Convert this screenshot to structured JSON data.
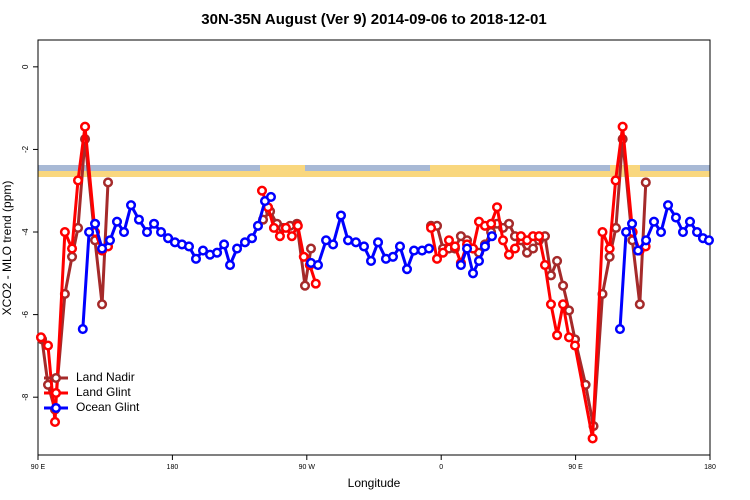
{
  "chart_data": {
    "type": "line",
    "title": "30N-35N August (Ver 9)   2014-09-06 to 2018-12-01",
    "x_label": "Longitude",
    "y_label": "XCO2 - MLO trend (ppm)",
    "xlim": [
      90,
      540
    ],
    "xticks": [
      {
        "value": 90,
        "label": "90 E"
      },
      180,
      {
        "value": 270,
        "label": "90 W"
      },
      {
        "value": 360,
        "label": "0"
      },
      {
        "value": 450,
        "label": "90 E"
      },
      {
        "value": 540,
        "label": "180"
      }
    ],
    "ylim": [
      -9.4,
      0.65
    ],
    "yticks": [
      0,
      -2,
      -4,
      -6,
      -8
    ],
    "legend": "bottomleft",
    "series": [
      {
        "name": "Land Nadir",
        "color": "#a52a2a",
        "x": [
          92.7,
          96.7,
          101.4,
          108,
          112.8,
          116.8,
          121.5,
          128.2,
          132.9,
          136.9,
          null,
          240.7,
          245.4,
          250,
          254,
          258.8,
          263.4,
          268.8,
          272.8,
          null,
          353.2,
          357.2,
          361.2,
          365.2,
          369.2,
          373.2,
          377.3,
          381.3,
          385.3,
          389.3,
          393.4,
          397.4,
          401.4,
          405.4,
          409.4,
          413.4,
          417.5,
          421.5,
          425.5,
          429.5,
          433.5,
          437.6,
          441.6,
          445.6,
          449.6,
          456.7,
          462,
          468,
          472.8,
          477,
          481.5,
          488,
          493,
          497
        ],
        "values": [
          -6.6,
          -7.7,
          -8.3,
          -5.5,
          -4.6,
          -3.9,
          -1.75,
          -4.2,
          -5.75,
          -2.8,
          null,
          -3.7,
          -3.5,
          -3.8,
          -3.9,
          -3.85,
          -3.8,
          -5.3,
          -4.4,
          null,
          -3.85,
          -3.85,
          -4.4,
          -4.4,
          -4.4,
          -4.1,
          -4.2,
          -4.4,
          -4.5,
          -4.3,
          -4.0,
          -3.8,
          -3.9,
          -3.8,
          -4.1,
          -4.2,
          -4.5,
          -4.4,
          -4.2,
          -4.1,
          -5.05,
          -4.7,
          -5.3,
          -5.9,
          -6.6,
          -7.7,
          -8.7,
          -5.5,
          -4.6,
          -3.9,
          -1.75,
          -4.2,
          -5.75,
          -2.8
        ]
      },
      {
        "name": "Land Glint",
        "color": "#ff0000",
        "x": [
          92,
          96.7,
          101.4,
          108,
          112.8,
          116.8,
          121.5,
          128.2,
          132.9,
          136.9,
          null,
          240,
          244,
          248,
          252,
          256,
          260,
          264,
          268,
          272,
          276,
          null,
          353.2,
          357.2,
          361.2,
          365.2,
          369.2,
          373.2,
          377.3,
          381.3,
          385.3,
          389.3,
          393.4,
          397.4,
          401.4,
          405.4,
          409.4,
          413.4,
          417.5,
          421.5,
          425.5,
          429.5,
          433.5,
          437.6,
          441.6,
          445.6,
          449.6,
          461.4,
          468,
          472.8,
          476.8,
          481.5,
          488.2,
          492.9,
          496.9
        ],
        "values": [
          -6.55,
          -6.75,
          -8.6,
          -4.0,
          -4.4,
          -2.75,
          -1.45,
          -4.0,
          -4.45,
          -4.35,
          null,
          -3.0,
          -3.4,
          -3.9,
          -4.1,
          -3.9,
          -4.1,
          -3.85,
          -4.6,
          -4.8,
          -5.25,
          null,
          -3.9,
          -4.65,
          -4.5,
          -4.2,
          -4.35,
          -4.75,
          -4.3,
          -4.4,
          -3.75,
          -3.85,
          -3.8,
          -3.4,
          -4.2,
          -4.55,
          -4.4,
          -4.1,
          -4.2,
          -4.1,
          -4.1,
          -4.8,
          -5.75,
          -6.5,
          -5.75,
          -6.55,
          -6.75,
          -9.0,
          -4.0,
          -4.4,
          -2.75,
          -1.45,
          -4.0,
          -4.45,
          -4.35
        ]
      },
      {
        "name": "Ocean Glint",
        "color": "#0000ff",
        "x": [
          120,
          124.2,
          128.2,
          132.9,
          138.2,
          142.9,
          147.6,
          152.3,
          157.6,
          163,
          167.7,
          172.4,
          177.1,
          181.7,
          186.4,
          191.1,
          195.8,
          200.5,
          205.2,
          209.9,
          214.6,
          218.6,
          223.3,
          228.6,
          233.3,
          237.3,
          242,
          246,
          null,
          272.8,
          277.5,
          282.9,
          287.6,
          292.9,
          297.6,
          302.9,
          308.3,
          313,
          317.7,
          323,
          327.7,
          332.4,
          337.1,
          341.8,
          347.2,
          351.8,
          null,
          373.2,
          377.3,
          381.3,
          385.3,
          389.3,
          394,
          null,
          479.7,
          483.8,
          487.8,
          491.8,
          497.2,
          502.5,
          507.2,
          511.9,
          517.2,
          521.9,
          526.6,
          531.3,
          535.3,
          539.3
        ],
        "values": [
          -6.35,
          -4.0,
          -3.8,
          -4.4,
          -4.2,
          -3.75,
          -4.0,
          -3.35,
          -3.7,
          -4.0,
          -3.8,
          -4.0,
          -4.15,
          -4.25,
          -4.3,
          -4.35,
          -4.65,
          -4.45,
          -4.55,
          -4.5,
          -4.3,
          -4.8,
          -4.4,
          -4.25,
          -4.15,
          -3.85,
          -3.25,
          -3.15,
          null,
          -4.75,
          -4.8,
          -4.2,
          -4.3,
          -3.6,
          -4.2,
          -4.25,
          -4.35,
          -4.7,
          -4.25,
          -4.65,
          -4.6,
          -4.35,
          -4.9,
          -4.45,
          -4.45,
          -4.4,
          null,
          -4.8,
          -4.4,
          -5.0,
          -4.7,
          -4.35,
          -4.1,
          null,
          -6.35,
          -4.0,
          -3.8,
          -4.45,
          -4.2,
          -3.75,
          -4.0,
          -3.35,
          -3.65,
          -4.0,
          -3.75,
          -4.0,
          -4.15,
          -4.2
        ]
      }
    ]
  }
}
